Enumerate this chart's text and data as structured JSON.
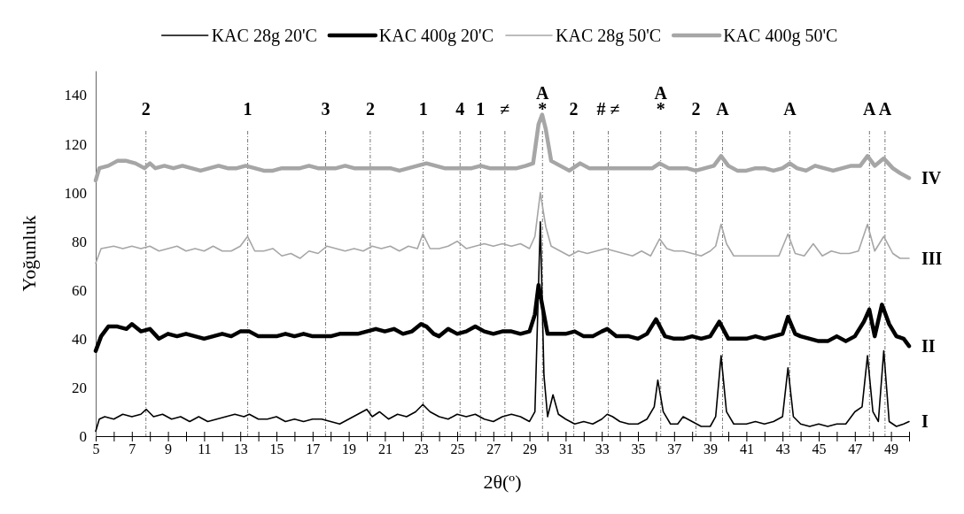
{
  "chart_data": {
    "type": "line",
    "xlabel": "2θ(º)",
    "ylabel": "Yoğunluk",
    "xlim": [
      5,
      50
    ],
    "ylim": [
      0,
      150
    ],
    "yticks": [
      0,
      20,
      40,
      60,
      80,
      100,
      120,
      140
    ],
    "xticks": [
      5,
      {
        "value": 6,
        "label": null
      },
      7,
      {
        "value": 8,
        "label": null
      },
      9,
      {
        "value": 10,
        "label": null
      },
      11,
      {
        "value": 12,
        "label": null
      },
      13,
      {
        "value": 14,
        "label": null
      },
      15,
      {
        "value": 16,
        "label": null
      },
      17,
      {
        "value": 18,
        "label": null
      },
      19,
      {
        "value": 20,
        "label": null
      },
      21,
      {
        "value": 22,
        "label": null
      },
      23,
      {
        "value": 24,
        "label": null
      },
      25,
      {
        "value": 26,
        "label": null
      },
      27,
      {
        "value": 28,
        "label": null
      },
      29,
      {
        "value": 30,
        "label": null
      },
      31,
      {
        "value": 32,
        "label": null
      },
      33,
      {
        "value": 34,
        "label": null
      },
      35,
      {
        "value": 36,
        "label": null
      },
      37,
      {
        "value": 38,
        "label": null
      },
      39,
      {
        "value": 40,
        "label": null
      },
      41,
      {
        "value": 42,
        "label": null
      },
      43,
      {
        "value": 44,
        "label": null
      },
      45,
      {
        "value": 46,
        "label": null
      },
      47,
      {
        "value": 48,
        "label": null
      },
      49,
      {
        "value": 50,
        "label": null
      }
    ],
    "grid": false,
    "legend": "top",
    "marker": "none",
    "line_style": "solid",
    "series": [
      {
        "name": "KAC 28g 20'C",
        "color": "#000000",
        "x": [
          5,
          5.2,
          5.5,
          6,
          6.5,
          7,
          7.5,
          7.8,
          8.2,
          8.7,
          9.2,
          9.7,
          10.2,
          10.7,
          11.2,
          11.7,
          12.2,
          12.7,
          13.2,
          13.5,
          14,
          14.5,
          15,
          15.5,
          16,
          16.5,
          17,
          17.5,
          18,
          18.5,
          19,
          19.5,
          20,
          20.3,
          20.7,
          21.2,
          21.7,
          22.2,
          22.7,
          23.1,
          23.5,
          24,
          24.5,
          25,
          25.5,
          26,
          26.5,
          27,
          27.5,
          28,
          28.5,
          29,
          29.3,
          29.6,
          29.8,
          30,
          30.3,
          30.6,
          31,
          31.5,
          32,
          32.5,
          33,
          33.3,
          33.6,
          34,
          34.5,
          35,
          35.5,
          35.9,
          36.1,
          36.4,
          36.8,
          37.2,
          37.5,
          38,
          38.5,
          39,
          39.3,
          39.6,
          39.9,
          40.3,
          41,
          41.5,
          42,
          42.5,
          43,
          43.3,
          43.6,
          44,
          44.5,
          45,
          45.5,
          46,
          46.5,
          47,
          47.4,
          47.7,
          48,
          48.3,
          48.6,
          48.9,
          49.3,
          49.7,
          50
        ],
        "values": [
          2,
          7,
          8,
          7,
          9,
          8,
          9,
          11,
          8,
          9,
          7,
          8,
          6,
          8,
          6,
          7,
          8,
          9,
          8,
          9,
          7,
          7,
          8,
          6,
          7,
          6,
          7,
          7,
          6,
          5,
          7,
          9,
          11,
          8,
          10,
          7,
          9,
          8,
          10,
          13,
          10,
          8,
          7,
          9,
          8,
          9,
          7,
          6,
          8,
          9,
          8,
          6,
          10,
          88,
          25,
          8,
          17,
          9,
          7,
          5,
          6,
          5,
          7,
          9,
          8,
          6,
          5,
          5,
          7,
          12,
          23,
          10,
          5,
          5,
          8,
          6,
          4,
          4,
          8,
          33,
          10,
          5,
          5,
          6,
          5,
          6,
          8,
          28,
          8,
          5,
          4,
          5,
          4,
          5,
          5,
          10,
          12,
          33,
          10,
          6,
          35,
          6,
          4,
          5,
          6
        ]
      },
      {
        "name": "KAC 400g 20'C",
        "color": "#000000",
        "x": [
          5,
          5.3,
          5.7,
          6.2,
          6.7,
          7,
          7.5,
          8,
          8.5,
          9,
          9.5,
          10,
          10.5,
          11,
          11.5,
          12,
          12.5,
          13,
          13.5,
          14,
          14.5,
          15,
          15.5,
          16,
          16.5,
          17,
          17.5,
          18,
          18.5,
          19,
          19.5,
          20,
          20.5,
          21,
          21.5,
          22,
          22.5,
          23,
          23.3,
          23.7,
          24,
          24.5,
          25,
          25.5,
          26,
          26.5,
          27,
          27.5,
          28,
          28.5,
          29,
          29.3,
          29.5,
          29.8,
          30,
          30.5,
          31,
          31.5,
          32,
          32.5,
          33,
          33.3,
          33.8,
          34.5,
          35,
          35.5,
          36,
          36.5,
          37,
          37.5,
          38,
          38.5,
          39,
          39.5,
          40,
          40.5,
          41,
          41.5,
          42,
          42.5,
          43,
          43.3,
          43.7,
          44,
          44.5,
          45,
          45.5,
          46,
          46.5,
          47,
          47.5,
          47.8,
          48.1,
          48.5,
          48.9,
          49.3,
          49.7,
          50
        ],
        "values": [
          35,
          41,
          45,
          45,
          44,
          46,
          43,
          44,
          40,
          42,
          41,
          42,
          41,
          40,
          41,
          42,
          41,
          43,
          43,
          41,
          41,
          41,
          42,
          41,
          42,
          41,
          41,
          41,
          42,
          42,
          42,
          43,
          44,
          43,
          44,
          42,
          43,
          46,
          45,
          42,
          41,
          44,
          42,
          43,
          45,
          43,
          42,
          43,
          43,
          42,
          43,
          50,
          62,
          50,
          42,
          42,
          42,
          43,
          41,
          41,
          43,
          44,
          41,
          41,
          40,
          42,
          48,
          41,
          40,
          40,
          41,
          40,
          41,
          47,
          40,
          40,
          40,
          41,
          40,
          41,
          42,
          49,
          42,
          41,
          40,
          39,
          39,
          41,
          39,
          41,
          47,
          52,
          41,
          54,
          46,
          41,
          40,
          37
        ]
      },
      {
        "name": "KAC 28g 50'C",
        "color": "#a6a6a6",
        "x": [
          5,
          5.3,
          6,
          6.5,
          7,
          7.5,
          8,
          8.5,
          9,
          9.5,
          10,
          10.5,
          11,
          11.5,
          12,
          12.5,
          13,
          13.4,
          13.8,
          14.3,
          14.8,
          15.3,
          15.8,
          16.3,
          16.8,
          17.3,
          17.8,
          18.3,
          18.8,
          19.3,
          19.8,
          20.3,
          20.8,
          21.3,
          21.8,
          22.3,
          22.8,
          23.1,
          23.5,
          24,
          24.5,
          25,
          25.5,
          26,
          26.5,
          27,
          27.5,
          28,
          28.5,
          29,
          29.3,
          29.6,
          29.9,
          30.2,
          30.7,
          31.2,
          31.7,
          32.2,
          32.7,
          33.2,
          33.7,
          34.2,
          34.7,
          35.2,
          35.7,
          36.2,
          36.6,
          37,
          37.5,
          38,
          38.5,
          39,
          39.3,
          39.6,
          39.9,
          40.3,
          40.8,
          41.3,
          41.8,
          42.3,
          42.8,
          43.3,
          43.7,
          44.2,
          44.7,
          45.2,
          45.7,
          46.2,
          46.7,
          47.2,
          47.7,
          48.1,
          48.6,
          49.1,
          49.5,
          50
        ],
        "values": [
          71,
          77,
          78,
          77,
          78,
          77,
          78,
          76,
          77,
          78,
          76,
          77,
          76,
          78,
          76,
          76,
          78,
          82,
          76,
          76,
          77,
          74,
          75,
          73,
          76,
          75,
          78,
          77,
          76,
          77,
          76,
          78,
          77,
          78,
          76,
          78,
          77,
          83,
          77,
          77,
          78,
          80,
          77,
          78,
          79,
          78,
          79,
          78,
          79,
          77,
          82,
          100,
          86,
          78,
          76,
          74,
          76,
          75,
          76,
          77,
          76,
          75,
          74,
          76,
          74,
          81,
          77,
          76,
          76,
          75,
          74,
          76,
          78,
          87,
          79,
          74,
          74,
          74,
          74,
          74,
          74,
          83,
          75,
          74,
          79,
          74,
          76,
          75,
          75,
          76,
          87,
          76,
          82,
          75,
          73,
          73
        ]
      },
      {
        "name": "KAC 400g 50'C",
        "color": "#a6a6a6",
        "x": [
          5,
          5.2,
          5.7,
          6.2,
          6.7,
          7.2,
          7.7,
          8,
          8.3,
          8.8,
          9.3,
          9.8,
          10.3,
          10.8,
          11.3,
          11.8,
          12.3,
          12.8,
          13.3,
          13.8,
          14.3,
          14.8,
          15.3,
          15.8,
          16.3,
          16.8,
          17.3,
          17.8,
          18.3,
          18.8,
          19.3,
          19.8,
          20.3,
          20.8,
          21.3,
          21.8,
          22.3,
          22.8,
          23.3,
          23.8,
          24.3,
          24.8,
          25.3,
          25.8,
          26.3,
          26.8,
          27.3,
          27.8,
          28.3,
          28.8,
          29.2,
          29.5,
          29.7,
          29.9,
          30.2,
          30.7,
          31.2,
          31.8,
          32.3,
          32.8,
          33.3,
          33.8,
          34.3,
          34.8,
          35.3,
          35.8,
          36.2,
          36.7,
          37.2,
          37.7,
          38.2,
          38.7,
          39.2,
          39.6,
          40,
          40.5,
          41,
          41.5,
          42,
          42.5,
          43,
          43.4,
          43.8,
          44.3,
          44.8,
          45.3,
          45.8,
          46.3,
          46.8,
          47.3,
          47.7,
          48.1,
          48.6,
          49.1,
          49.5,
          50
        ],
        "values": [
          105,
          110,
          111,
          113,
          113,
          112,
          110,
          112,
          110,
          111,
          110,
          111,
          110,
          109,
          110,
          111,
          110,
          110,
          111,
          110,
          109,
          109,
          110,
          110,
          110,
          111,
          110,
          110,
          110,
          111,
          110,
          110,
          110,
          110,
          110,
          109,
          110,
          111,
          112,
          111,
          110,
          110,
          110,
          110,
          111,
          110,
          110,
          110,
          110,
          111,
          112,
          128,
          132,
          126,
          113,
          111,
          109,
          112,
          110,
          110,
          110,
          110,
          110,
          110,
          110,
          110,
          112,
          110,
          110,
          110,
          109,
          110,
          111,
          115,
          111,
          109,
          109,
          110,
          110,
          109,
          110,
          112,
          110,
          109,
          111,
          110,
          109,
          110,
          111,
          111,
          115,
          111,
          114,
          110,
          108,
          106
        ]
      }
    ],
    "ref_lines": [
      {
        "axis": "x",
        "value": 7.78
      },
      {
        "axis": "x",
        "value": 13.41
      },
      {
        "axis": "x",
        "value": 17.72
      },
      {
        "axis": "x",
        "value": 20.19
      },
      {
        "axis": "x",
        "value": 23.12
      },
      {
        "axis": "x",
        "value": 25.16
      },
      {
        "axis": "x",
        "value": 26.29
      },
      {
        "axis": "x",
        "value": 27.64
      },
      {
        "axis": "x",
        "value": 29.72,
        "label": "A\n*"
      },
      {
        "axis": "x",
        "value": 31.45
      },
      {
        "axis": "x",
        "value": 33.36,
        "label": "# ≠"
      },
      {
        "axis": "x",
        "value": 36.26,
        "label": "A\n*"
      },
      {
        "axis": "x",
        "value": 38.21
      },
      {
        "axis": "x",
        "value": 39.68,
        "label": "A"
      },
      {
        "axis": "x",
        "value": 43.4,
        "label": "A"
      },
      {
        "axis": "x",
        "value": 47.81,
        "label": "A"
      },
      {
        "axis": "x",
        "value": 48.67,
        "label": "A"
      }
    ],
    "annotations": [
      "IV",
      "III",
      "II",
      "I",
      "2",
      "1",
      "3",
      "2",
      "1",
      "4",
      "1",
      "≠",
      "2",
      "2"
    ]
  }
}
